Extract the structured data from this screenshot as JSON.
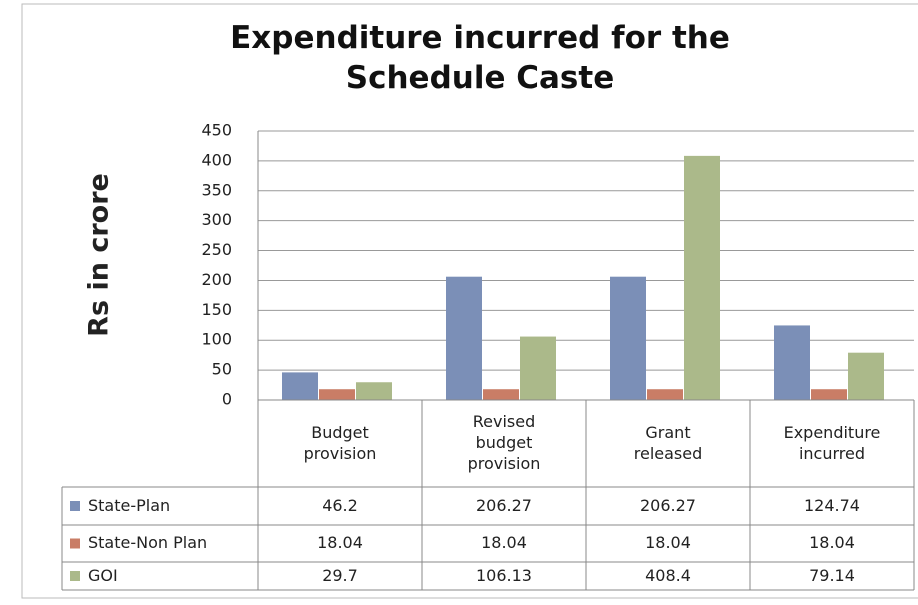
{
  "chart_data": {
    "type": "bar",
    "title": "Expenditure incurred for the Schedule Caste",
    "y_label": "Rs in crore",
    "categories": [
      "Budget provision",
      "Revised budget provision",
      "Grant released",
      "Expenditure incurred"
    ],
    "series": [
      {
        "name": "State-Plan",
        "color": "#7b8fb7",
        "values": [
          46.2,
          206.27,
          206.27,
          124.74
        ]
      },
      {
        "name": "State-Non Plan",
        "color": "#c97d66",
        "values": [
          18.04,
          18.04,
          18.04,
          18.04
        ]
      },
      {
        "name": "GOI",
        "color": "#abb98a",
        "values": [
          29.7,
          106.13,
          408.4,
          79.14
        ]
      }
    ],
    "ylim": [
      0,
      450
    ],
    "yticks": [
      0,
      50,
      100,
      150,
      200,
      250,
      300,
      350,
      400,
      450
    ],
    "grid": true,
    "data_table": true
  }
}
